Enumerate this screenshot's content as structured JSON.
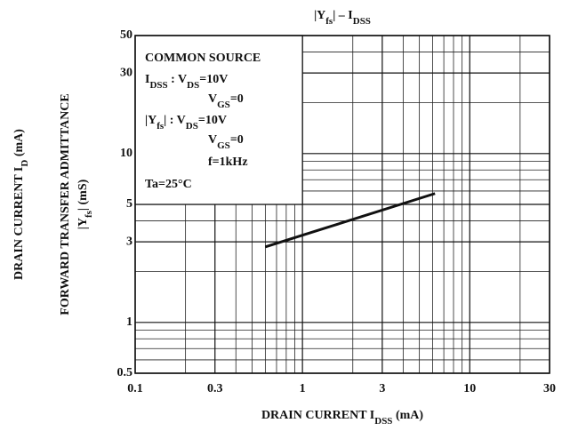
{
  "chart_data": {
    "type": "line",
    "title": [
      "|Y",
      {
        "sub": "fs"
      },
      "|  –  I",
      {
        "sub": "DSS"
      }
    ],
    "x_label": [
      "DRAIN CURRENT  I",
      {
        "sub": "DSS"
      },
      "  (mA)"
    ],
    "y_label_outer": [
      "DRAIN CURRENT  I",
      {
        "sub": "D"
      },
      "  (mA)"
    ],
    "y_label": [
      "FORWARD TRANSFER ADMITTANCE"
    ],
    "y_label_unit": [
      "|Y",
      {
        "sub": "fs"
      },
      "|  (mS)"
    ],
    "annotations": [
      [
        "COMMON SOURCE"
      ],
      [
        "I",
        {
          "sub": "DSS"
        },
        "  : V",
        {
          "sub": "DS"
        },
        "=10V"
      ],
      [
        "V",
        {
          "sub": "GS"
        },
        "=0"
      ],
      [
        "|Y",
        {
          "sub": "fs"
        },
        "|",
        "    : V",
        {
          "sub": "DS"
        },
        "=10V"
      ],
      [
        "V",
        {
          "sub": "GS"
        },
        "=0"
      ],
      [
        "f=1kHz"
      ],
      [
        "Ta=25°C"
      ]
    ],
    "log_x": true,
    "log_y": true,
    "grid": true,
    "color": "#111111",
    "xlim": [
      0.1,
      30
    ],
    "ylim": [
      0.5,
      50
    ],
    "xticks": [
      0.1,
      0.3,
      1,
      3,
      10,
      30
    ],
    "yticks": [
      0.5,
      1,
      3,
      5,
      10,
      30,
      50
    ],
    "minor_xticks": [
      0.2,
      0.4,
      0.5,
      0.6,
      0.7,
      0.8,
      0.9,
      2,
      4,
      5,
      6,
      7,
      8,
      9,
      20
    ],
    "minor_yticks": [
      0.6,
      0.7,
      0.8,
      0.9,
      2,
      4,
      6,
      7,
      8,
      9,
      20,
      40
    ],
    "x": [
      0.6,
      6.2
    ],
    "series": [
      {
        "values": [
          2.8,
          5.8
        ]
      }
    ]
  }
}
